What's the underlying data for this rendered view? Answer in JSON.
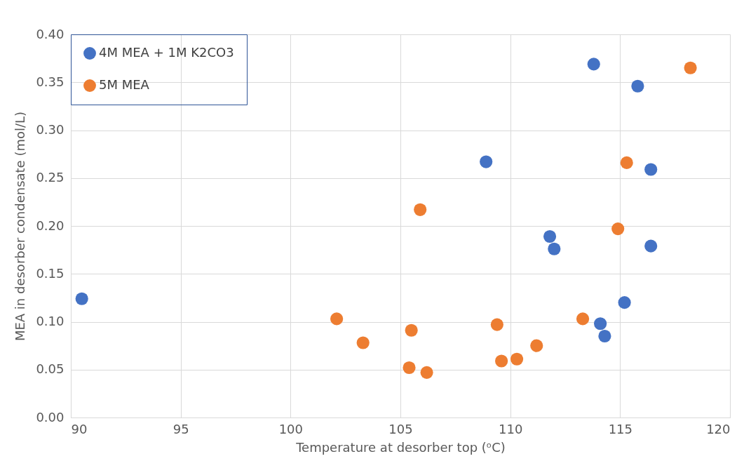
{
  "chart_data": {
    "type": "scatter",
    "xlabel": "Temperature at desorber top (ᵒC)",
    "ylabel": "MEA in desorber condensate  (mol/L)",
    "xlim": [
      90,
      120
    ],
    "xticks": [
      90,
      95,
      100,
      105,
      110,
      115,
      120
    ],
    "ylim": [
      0,
      0.4
    ],
    "yticks": [
      {
        "value": 0,
        "label": "0.00"
      },
      {
        "value": 0.05,
        "label": "0.05"
      },
      {
        "value": 0.1,
        "label": "0.10"
      },
      {
        "value": 0.15,
        "label": "0.15"
      },
      {
        "value": 0.2,
        "label": "0.20"
      },
      {
        "value": 0.25,
        "label": "0.25"
      },
      {
        "value": 0.3,
        "label": "0.30"
      },
      {
        "value": 0.35,
        "label": "0.35"
      },
      {
        "value": 0.4,
        "label": "0.40"
      }
    ],
    "grid": true,
    "legend": "top left",
    "marker": "circle",
    "series": [
      {
        "name": "4M MEA + 1M K2CO3",
        "color": "#4472c4",
        "x": [
          90.5,
          113.8,
          115.8,
          108.9,
          116.4,
          111.8,
          112.0,
          116.4,
          115.2,
          114.1,
          114.3
        ],
        "values": [
          0.124,
          0.369,
          0.346,
          0.267,
          0.259,
          0.189,
          0.176,
          0.179,
          0.12,
          0.098,
          0.085
        ]
      },
      {
        "name": "5M MEA",
        "color": "#ed7d31",
        "x": [
          118.2,
          115.3,
          105.9,
          114.9,
          102.1,
          103.3,
          105.5,
          105.4,
          106.2,
          109.4,
          109.6,
          110.3,
          111.2,
          113.3
        ],
        "values": [
          0.365,
          0.266,
          0.217,
          0.197,
          0.103,
          0.078,
          0.091,
          0.052,
          0.047,
          0.097,
          0.059,
          0.061,
          0.075,
          0.103
        ]
      }
    ]
  }
}
